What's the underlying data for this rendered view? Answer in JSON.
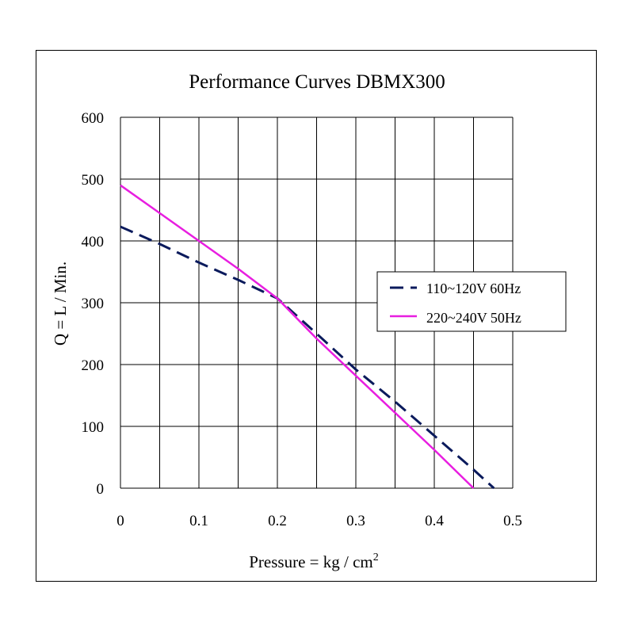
{
  "chart_data": {
    "type": "line",
    "title": "Performance  Curves  DBMX300",
    "xlabel": "Pressure = kg / cm",
    "xlabel_superscript": "2",
    "ylabel": "Q = L / Min.",
    "xlim": [
      0,
      0.5
    ],
    "ylim": [
      0,
      600
    ],
    "x_ticks": [
      "0",
      "0.1",
      "0.2",
      "0.3",
      "0.4",
      "0.5"
    ],
    "y_ticks": [
      "0",
      "100",
      "200",
      "300",
      "400",
      "500",
      "600"
    ],
    "x_tick_values": [
      0,
      0.1,
      0.2,
      0.3,
      0.4,
      0.5
    ],
    "y_tick_values": [
      0,
      100,
      200,
      300,
      400,
      500,
      600
    ],
    "x_grid_step": 0.05,
    "y_grid_step": 100,
    "grid": true,
    "legend_position": "right-middle",
    "series": [
      {
        "name": "110~120V 60Hz",
        "color": "#0a1a5c",
        "style": "dashed",
        "x": [
          0,
          0.05,
          0.1,
          0.15,
          0.2,
          0.25,
          0.3,
          0.35,
          0.4,
          0.45,
          0.476
        ],
        "y": [
          423,
          395,
          365,
          337,
          307,
          250,
          192,
          140,
          85,
          30,
          0
        ]
      },
      {
        "name": "220~240V 50Hz",
        "color": "#e81ee0",
        "style": "solid",
        "x": [
          0,
          0.05,
          0.1,
          0.15,
          0.2,
          0.25,
          0.3,
          0.35,
          0.4,
          0.45
        ],
        "y": [
          490,
          445,
          400,
          355,
          307,
          242,
          182,
          122,
          62,
          0
        ]
      }
    ]
  }
}
